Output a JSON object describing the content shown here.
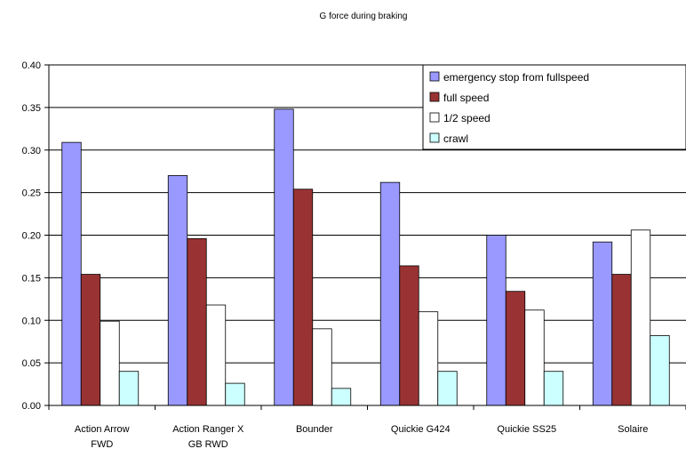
{
  "chart_data": {
    "type": "bar",
    "title": "G force during braking",
    "xlabel": "",
    "ylabel": "",
    "ylim": [
      0,
      0.4
    ],
    "yticks": [
      "0.00",
      "0.05",
      "0.10",
      "0.15",
      "0.20",
      "0.25",
      "0.30",
      "0.35",
      "0.40"
    ],
    "grid": true,
    "legend_position": "top-right",
    "categories": [
      [
        "Action Arrow",
        "FWD"
      ],
      [
        "Action Ranger X",
        "GB RWD"
      ],
      [
        "Bounder"
      ],
      [
        "Quickie G424"
      ],
      [
        "Quickie SS25"
      ],
      [
        "Solaire"
      ]
    ],
    "series": [
      {
        "name": "emergency stop from fullspeed",
        "color": "#9999ff",
        "values": [
          0.309,
          0.27,
          0.348,
          0.262,
          0.2,
          0.192
        ]
      },
      {
        "name": "full speed",
        "color": "#993333",
        "values": [
          0.154,
          0.196,
          0.254,
          0.164,
          0.134,
          0.154
        ]
      },
      {
        "name": "1/2 speed",
        "color": "#ffffff",
        "values": [
          0.099,
          0.118,
          0.09,
          0.11,
          0.112,
          0.206
        ]
      },
      {
        "name": "crawl",
        "color": "#ccffff",
        "values": [
          0.04,
          0.026,
          0.02,
          0.04,
          0.04,
          0.082
        ]
      }
    ]
  }
}
